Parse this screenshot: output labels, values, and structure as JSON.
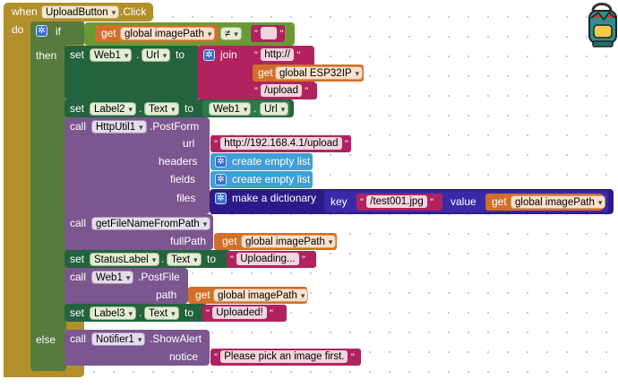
{
  "event": {
    "when": "when",
    "component": "UploadButton",
    "event_name": ".Click",
    "do": "do"
  },
  "if_block": {
    "if": "if",
    "then": "then",
    "else": "else"
  },
  "condition": {
    "get": "get",
    "var": "global imagePath",
    "op": "≠",
    "empty_string": ""
  },
  "stmt1": {
    "set": "set",
    "component": "Web1",
    "dot": ".",
    "prop": "Url",
    "to": "to",
    "join": "join",
    "text1": "http://",
    "get": "get",
    "var": "global ESP32IP",
    "text2": "/upload"
  },
  "stmt2": {
    "set": "set",
    "component": "Label2",
    "dot": ".",
    "prop": "Text",
    "to": "to",
    "src_component": "Web1",
    "src_prop": "Url"
  },
  "stmt3": {
    "call": "call",
    "component": "HttpUtil1",
    "method": ".PostForm",
    "url_label": "url",
    "url_value": "http://192.168.4.1/upload",
    "headers_label": "headers",
    "headers_value": "create empty list",
    "fields_label": "fields",
    "fields_value": "create empty list",
    "files_label": "files",
    "files_value": "make a dictionary",
    "key_label": "key",
    "key_value": "/test001.jpg",
    "value_label": "value",
    "get": "get",
    "value_var": "global imagePath"
  },
  "stmt4": {
    "call": "call",
    "procedure": "getFileNameFromPath",
    "param": "fullPath",
    "get": "get",
    "var": "global imagePath"
  },
  "stmt5": {
    "set": "set",
    "component": "StatusLabel",
    "dot": ".",
    "prop": "Text",
    "to": "to",
    "value": "Uploading..."
  },
  "stmt6": {
    "call": "call",
    "component": "Web1",
    "method": ".PostFile",
    "param": "path",
    "get": "get",
    "var": "global imagePath"
  },
  "stmt7": {
    "set": "set",
    "component": "Label3",
    "dot": ".",
    "prop": "Text",
    "to": "to",
    "value": "Uploaded!"
  },
  "else_stmt": {
    "call": "call",
    "component": "Notifier1",
    "method": ".ShowAlert",
    "param": "notice",
    "value": "Please pick an image first."
  },
  "colors": {
    "event": "#b28f2a",
    "control": "#577a3e",
    "component_set": "#23643f",
    "component_call": "#7b568f",
    "text": "#b0235e",
    "variable": "#d26f28",
    "list": "#3f9fd6",
    "dictionary": "#2d1a88"
  },
  "icons": {
    "mutator": "gear-icon",
    "backpack": "backpack-icon"
  }
}
